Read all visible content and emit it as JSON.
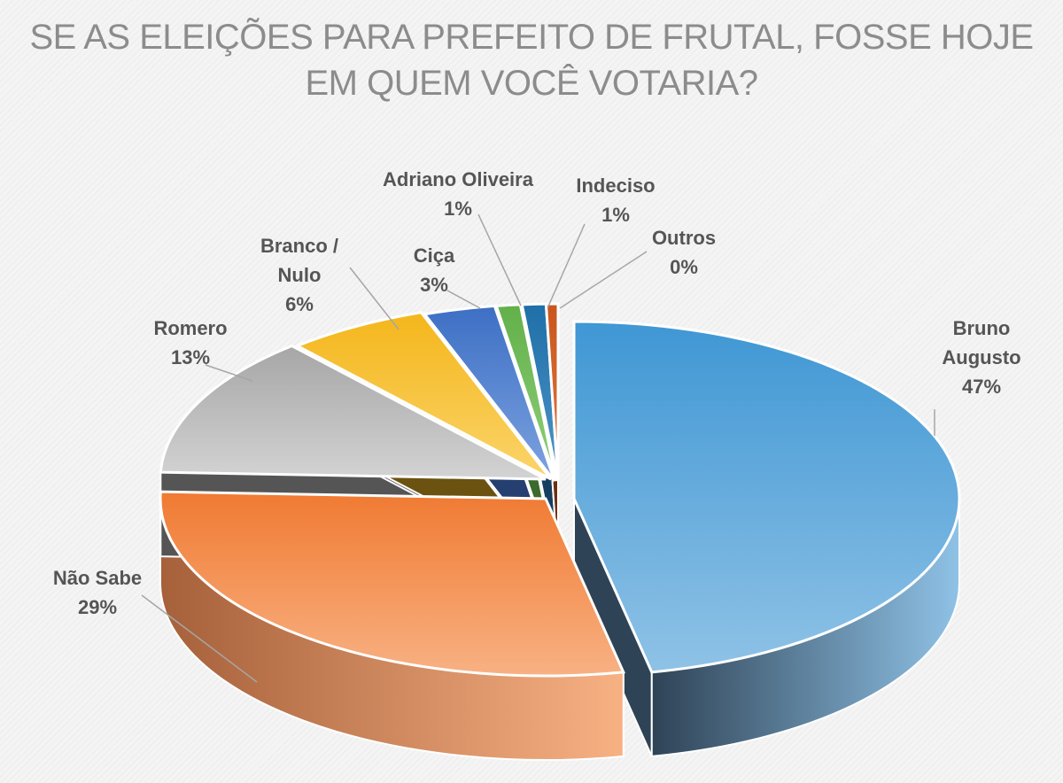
{
  "chart_data": {
    "type": "pie",
    "title_lines": [
      "SE AS ELEIÇÕES PARA PREFEITO DE FRUTAL, FOSSE HOJE",
      "EM QUEM VOCÊ VOTARIA?"
    ],
    "slices": [
      {
        "name_lines": [
          "Bruno",
          "Augusto"
        ],
        "value": 47,
        "label": "47%",
        "color": "#3f97d4",
        "color_light": "#8fc2e6",
        "color_dark": "#2f4356"
      },
      {
        "name_lines": [
          "Não Sabe"
        ],
        "value": 29,
        "label": "29%",
        "color": "#f07a32",
        "color_light": "#f8b183",
        "color_dark": "#a6603a"
      },
      {
        "name_lines": [
          "Romero"
        ],
        "value": 13,
        "label": "13%",
        "color": "#a6a6a6",
        "color_light": "#d3d3d3",
        "color_dark": "#555555"
      },
      {
        "name_lines": [
          "Branco /",
          "Nulo"
        ],
        "value": 6,
        "label": "6%",
        "color": "#f4b61b",
        "color_light": "#fbd46a",
        "color_dark": "#6b5210"
      },
      {
        "name_lines": [
          "Ciça"
        ],
        "value": 3,
        "label": "3%",
        "color": "#3d6fc4",
        "color_light": "#7da3e0",
        "color_dark": "#243f70"
      },
      {
        "name_lines": [
          "Adriano Oliveira"
        ],
        "value": 1,
        "label": "1%",
        "color": "#63b04a",
        "color_light": "#8fd07a",
        "color_dark": "#3a6a2c"
      },
      {
        "name_lines": [
          "Indeciso"
        ],
        "value": 1,
        "label": "1%",
        "color": "#1f6fa8",
        "color_light": "#4f95c8",
        "color_dark": "#143f60"
      },
      {
        "name_lines": [
          "Outros"
        ],
        "value": 0.5,
        "label": "0%",
        "color": "#c9561c",
        "color_light": "#e07a40",
        "color_dark": "#6e2f10"
      }
    ],
    "legend": "none"
  }
}
